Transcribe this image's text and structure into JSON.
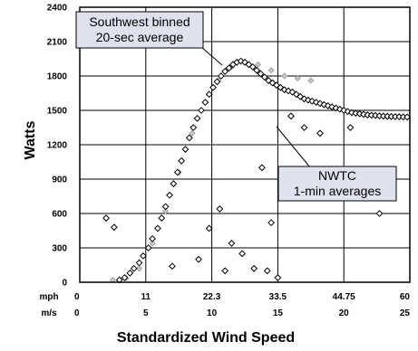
{
  "chart_data": {
    "type": "scatter",
    "ylabel": "Watts",
    "xlabel": "Standardized Wind Speed",
    "ylim": [
      0,
      2400
    ],
    "yticks": [
      "0",
      "300",
      "600",
      "900",
      "1200",
      "1500",
      "1800",
      "2100",
      "2400"
    ],
    "xlim_ms": [
      0,
      25
    ],
    "x_axes": [
      {
        "unit": "mph",
        "ticks": [
          "0",
          "11",
          "22.3",
          "33.5",
          "44.75",
          "60"
        ]
      },
      {
        "unit": "m/s",
        "ticks": [
          "0",
          "5",
          "10",
          "15",
          "20",
          "25"
        ]
      }
    ],
    "grid": true,
    "annotations": [
      {
        "lines": [
          "Southwest binned",
          "20-sec average"
        ]
      },
      {
        "lines": [
          "NWTC",
          "1-min averages"
        ]
      }
    ],
    "series": [
      {
        "marker": "diamond-gray",
        "x": [
          2.5,
          3.5,
          4.5,
          5.5,
          6.5,
          7.5,
          8.5,
          9.5,
          10.5,
          11.5,
          12.5,
          13.5,
          14.5,
          15.5,
          16.5,
          17.5
        ],
        "y": [
          20,
          35,
          120,
          340,
          620,
          960,
          1300,
          1570,
          1760,
          1880,
          1920,
          1900,
          1850,
          1800,
          1780,
          1760
        ]
      },
      {
        "marker": "diamond-open",
        "x": [
          3.0,
          3.4,
          3.8,
          4.1,
          4.5,
          4.8,
          5.2,
          5.5,
          5.9,
          6.2,
          6.5,
          6.8,
          7.1,
          7.4,
          7.7,
          8.0,
          8.3,
          8.6,
          8.9,
          9.2,
          9.5,
          9.8,
          10.1,
          10.4,
          10.7,
          11.0,
          11.3,
          11.6,
          11.9,
          12.2,
          12.5,
          12.8,
          13.1,
          13.4,
          13.7,
          14.0,
          14.3,
          14.6,
          14.9,
          15.2,
          15.5,
          15.8,
          16.1,
          16.4,
          16.7,
          17.0,
          17.3,
          17.6,
          17.9,
          18.2,
          18.5,
          18.8,
          19.1,
          19.4,
          19.7,
          20.0,
          20.3,
          20.6,
          20.9,
          21.2,
          21.5,
          21.8,
          22.1,
          22.4,
          22.7,
          23.0,
          23.3,
          23.6,
          23.9,
          24.2,
          24.5,
          24.8
        ],
        "y": [
          20,
          40,
          80,
          120,
          170,
          230,
          300,
          380,
          470,
          560,
          660,
          760,
          860,
          960,
          1060,
          1160,
          1260,
          1350,
          1430,
          1500,
          1570,
          1640,
          1700,
          1750,
          1800,
          1840,
          1870,
          1900,
          1920,
          1930,
          1920,
          1900,
          1880,
          1850,
          1820,
          1790,
          1760,
          1740,
          1720,
          1700,
          1680,
          1670,
          1660,
          1640,
          1620,
          1600,
          1590,
          1580,
          1570,
          1560,
          1550,
          1540,
          1530,
          1520,
          1510,
          1500,
          1490,
          1480,
          1475,
          1470,
          1465,
          1460,
          1458,
          1455,
          1452,
          1450,
          1448,
          1446,
          1445,
          1444,
          1443,
          1442
        ]
      },
      {
        "marker": "diamond-open",
        "x": [
          2.0,
          2.6,
          7.0,
          9.0,
          9.8,
          10.6,
          11.5,
          12.3,
          13.2,
          14.2,
          15.0,
          16.0,
          17.0,
          18.2,
          20.5,
          22.7,
          13.8,
          14.5,
          11.0
        ],
        "y": [
          560,
          480,
          140,
          200,
          470,
          640,
          340,
          250,
          120,
          100,
          40,
          1450,
          1350,
          1300,
          1350,
          600,
          1000,
          520,
          100
        ]
      }
    ]
  }
}
